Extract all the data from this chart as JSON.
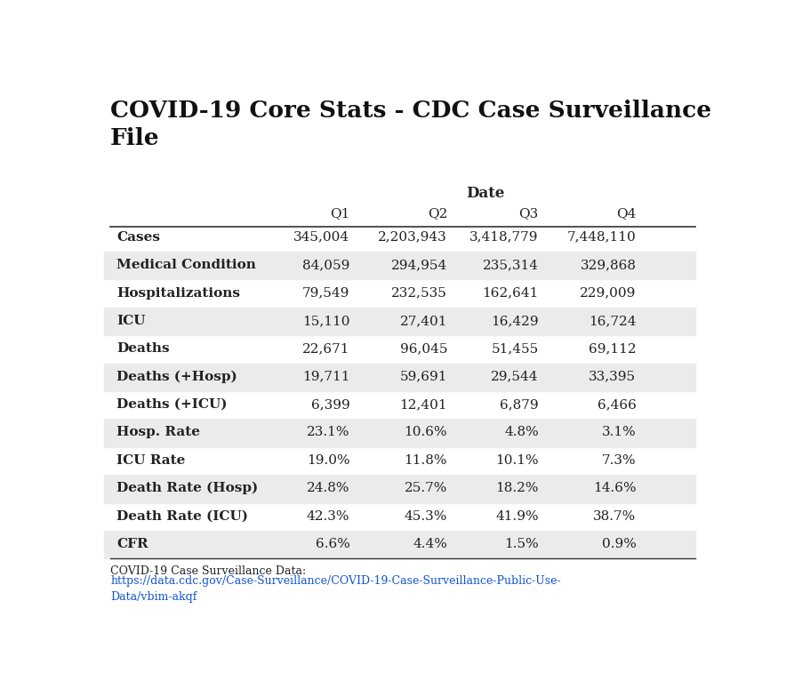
{
  "title": "COVID-19 Core Stats - CDC Case Surveillance\nFile",
  "col_header_group": "Date",
  "columns": [
    "",
    "Q1",
    "Q2",
    "Q3",
    "Q4"
  ],
  "rows": [
    [
      "Cases",
      "345,004",
      "2,203,943",
      "3,418,779",
      "7,448,110"
    ],
    [
      "Medical Condition",
      "84,059",
      "294,954",
      "235,314",
      "329,868"
    ],
    [
      "Hospitalizations",
      "79,549",
      "232,535",
      "162,641",
      "229,009"
    ],
    [
      "ICU",
      "15,110",
      "27,401",
      "16,429",
      "16,724"
    ],
    [
      "Deaths",
      "22,671",
      "96,045",
      "51,455",
      "69,112"
    ],
    [
      "Deaths (+Hosp)",
      "19,711",
      "59,691",
      "29,544",
      "33,395"
    ],
    [
      "Deaths (+ICU)",
      "6,399",
      "12,401",
      "6,879",
      "6,466"
    ],
    [
      "Hosp. Rate",
      "23.1%",
      "10.6%",
      "4.8%",
      "3.1%"
    ],
    [
      "ICU Rate",
      "19.0%",
      "11.8%",
      "10.1%",
      "7.3%"
    ],
    [
      "Death Rate (Hosp)",
      "24.8%",
      "25.7%",
      "18.2%",
      "14.6%"
    ],
    [
      "Death Rate (ICU)",
      "42.3%",
      "45.3%",
      "41.9%",
      "38.7%"
    ],
    [
      "CFR",
      "6.6%",
      "4.4%",
      "1.5%",
      "0.9%"
    ]
  ],
  "shaded_rows": [
    1,
    3,
    5,
    7,
    9,
    11
  ],
  "footer_text": "COVID-19 Case Surveillance Data:",
  "footer_link": "https://data.cdc.gov/Case-Surveillance/COVID-19-Case-Surveillance-Public-Use-\nData/vbim-akqf",
  "bg_color": "#ffffff",
  "shade_color": "#ebebeb",
  "header_line_color": "#333333",
  "text_color": "#222222",
  "title_color": "#111111",
  "link_color": "#1155cc"
}
